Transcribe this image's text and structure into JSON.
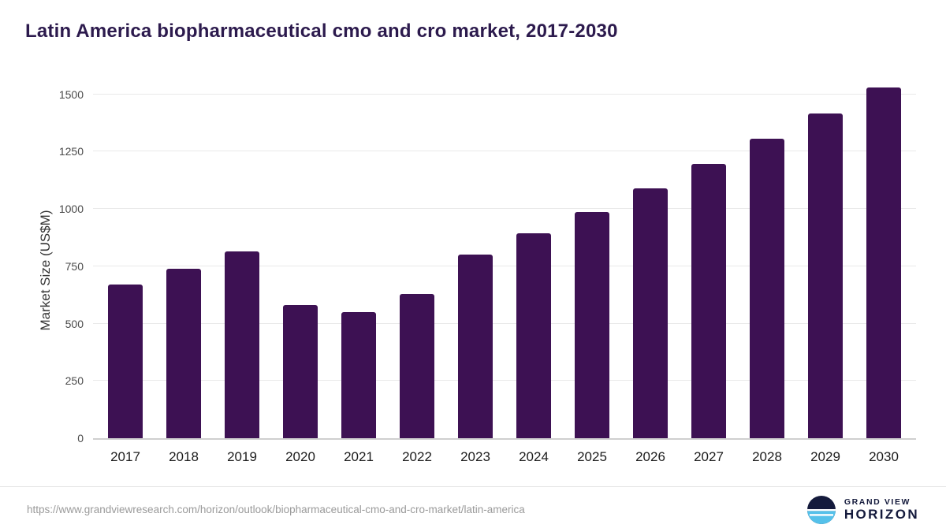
{
  "title": "Latin America biopharmaceutical cmo and cro market, 2017-2030",
  "chart_data": {
    "type": "bar",
    "categories": [
      "2017",
      "2018",
      "2019",
      "2020",
      "2021",
      "2022",
      "2023",
      "2024",
      "2025",
      "2026",
      "2027",
      "2028",
      "2029",
      "2030"
    ],
    "values": [
      670,
      740,
      815,
      580,
      550,
      630,
      800,
      895,
      985,
      1090,
      1195,
      1305,
      1415,
      1530
    ],
    "title": "Latin America biopharmaceutical cmo and cro market, 2017-2030",
    "xlabel": "",
    "ylabel": "Market Size (US$M)",
    "ylim": [
      0,
      1540
    ],
    "yticks": [
      0,
      250,
      500,
      750,
      1000,
      1250,
      1500
    ],
    "grid": true,
    "legend": "none",
    "bar_color": "#3d1153"
  },
  "colors": {
    "title_text": "#2c1a4d",
    "bar": "#3d1153",
    "grid_line": "#e9e9e9",
    "axis_line": "#cfcfcf",
    "brand_navy": "#141a3c",
    "brand_blue": "#55c1ea"
  },
  "footer": {
    "source_url": "https://www.grandviewresearch.com/horizon/outlook/biopharmaceutical-cmo-and-cro-market/latin-america",
    "brand_line1": "GRAND VIEW",
    "brand_line2": "HORIZON",
    "logo_icon": "horizon-circle-icon"
  }
}
